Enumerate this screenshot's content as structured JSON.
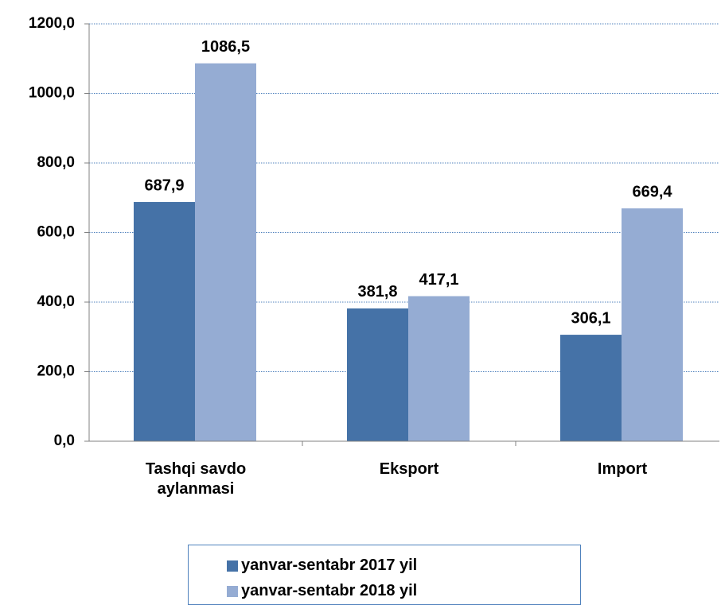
{
  "chart_data": {
    "type": "bar",
    "categories": [
      "Tashqi savdo aylanmasi",
      "Eksport",
      "Import"
    ],
    "series": [
      {
        "name": "yanvar-sentabr 2017 yil",
        "color": "#4572a7",
        "values": [
          687.9,
          381.8,
          306.1
        ],
        "value_labels": [
          "687,9",
          "381,8",
          "306,1"
        ]
      },
      {
        "name": "yanvar-sentabr 2018 yil",
        "color": "#95acd3",
        "values": [
          1086.5,
          417.1,
          669.4
        ],
        "value_labels": [
          "1086,5",
          "417,1",
          "669,4"
        ]
      }
    ],
    "ylim": [
      0,
      1200
    ],
    "yticks": [
      {
        "value": 0,
        "label": "0,0"
      },
      {
        "value": 200,
        "label": "200,0"
      },
      {
        "value": 400,
        "label": "400,0"
      },
      {
        "value": 600,
        "label": "600,0"
      },
      {
        "value": 800,
        "label": "800,0"
      },
      {
        "value": 1000,
        "label": "1000,0"
      },
      {
        "value": 1200,
        "label": "1200,0"
      }
    ],
    "grid": true,
    "legend": "bottom"
  }
}
